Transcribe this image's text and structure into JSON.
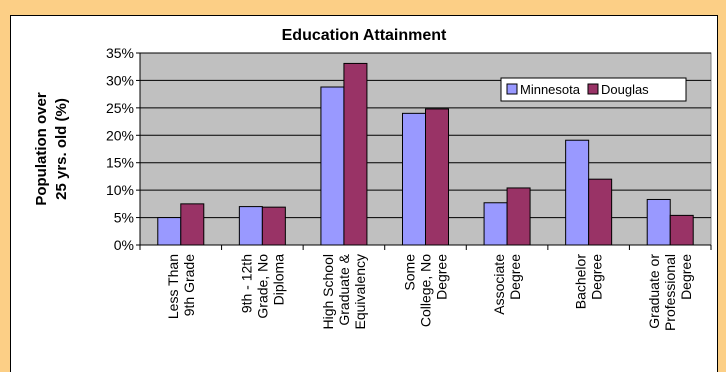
{
  "chart_data": {
    "type": "bar",
    "title": "Education Attainment",
    "ylabel": "Population over\n25 yrs. old (%)",
    "xlabel": "",
    "ylim": [
      0,
      35
    ],
    "yticks": [
      "0%",
      "5%",
      "10%",
      "15%",
      "20%",
      "25%",
      "30%",
      "35%"
    ],
    "grid": true,
    "legend_position": "top-right",
    "categories": [
      [
        "Less Than",
        "9th Grade"
      ],
      [
        "9th - 12th",
        "Grade, No",
        "Diploma"
      ],
      [
        "High School",
        "Graduate &",
        "Equivalency"
      ],
      [
        "Some",
        "College, No",
        "Degree"
      ],
      [
        "Associate",
        "Degree"
      ],
      [
        "Bachelor",
        "Degree"
      ],
      [
        "Graduate or",
        "Professional",
        "Degree"
      ]
    ],
    "series": [
      {
        "name": "Minnesota",
        "color": "#9999ff",
        "values": [
          5.0,
          7.0,
          28.8,
          24.0,
          7.7,
          19.1,
          8.3
        ]
      },
      {
        "name": "Douglas",
        "color": "#993366",
        "values": [
          7.5,
          6.9,
          33.1,
          24.8,
          10.4,
          12.0,
          5.4
        ]
      }
    ],
    "plot_background": "#c0c0c0"
  }
}
